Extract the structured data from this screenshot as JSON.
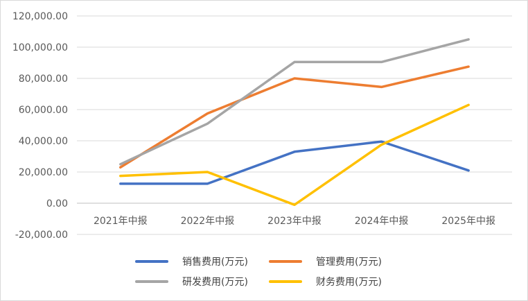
{
  "chart_data": {
    "type": "line",
    "categories": [
      "2021年中报",
      "2022年中报",
      "2023年中报",
      "2024年中报",
      "2025年中报"
    ],
    "ylim": [
      -20000,
      120000
    ],
    "yticks": [
      -20000,
      0,
      20000,
      40000,
      60000,
      80000,
      100000,
      120000
    ],
    "ytick_labels": [
      "-20,000.00",
      "0.00",
      "20,000.00",
      "40,000.00",
      "60,000.00",
      "80,000.00",
      "100,000.00",
      "120,000.00"
    ],
    "grid": true,
    "legend_position": "bottom",
    "series": [
      {
        "name": "销售费用(万元)",
        "color": "#4472C4",
        "values": [
          12500,
          12500,
          33000,
          39500,
          21000
        ]
      },
      {
        "name": "管理费用(万元)",
        "color": "#ED7D31",
        "values": [
          23000,
          57500,
          80000,
          74500,
          87500
        ]
      },
      {
        "name": "研发费用(万元)",
        "color": "#A5A5A5",
        "values": [
          25000,
          51000,
          90500,
          90500,
          105000
        ]
      },
      {
        "name": "财务费用(万元)",
        "color": "#FFC000",
        "values": [
          17500,
          20000,
          -1000,
          37500,
          63000
        ]
      }
    ]
  }
}
